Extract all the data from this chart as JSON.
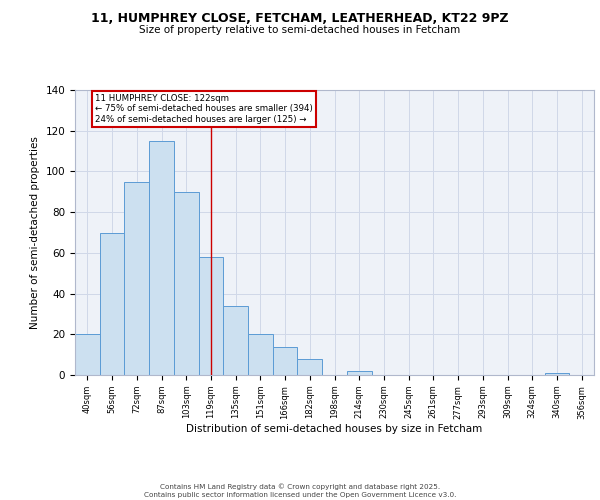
{
  "title1": "11, HUMPHREY CLOSE, FETCHAM, LEATHERHEAD, KT22 9PZ",
  "title2": "Size of property relative to semi-detached houses in Fetcham",
  "xlabel": "Distribution of semi-detached houses by size in Fetcham",
  "ylabel": "Number of semi-detached properties",
  "bar_labels": [
    "40sqm",
    "56sqm",
    "72sqm",
    "87sqm",
    "103sqm",
    "119sqm",
    "135sqm",
    "151sqm",
    "166sqm",
    "182sqm",
    "198sqm",
    "214sqm",
    "230sqm",
    "245sqm",
    "261sqm",
    "277sqm",
    "293sqm",
    "309sqm",
    "324sqm",
    "340sqm",
    "356sqm"
  ],
  "bar_heights": [
    20,
    70,
    95,
    115,
    90,
    58,
    34,
    20,
    14,
    8,
    0,
    2,
    0,
    0,
    0,
    0,
    0,
    0,
    0,
    1,
    0
  ],
  "bar_color": "#cce0f0",
  "bar_edge_color": "#5b9bd5",
  "ylim": [
    0,
    140
  ],
  "yticks": [
    0,
    20,
    40,
    60,
    80,
    100,
    120,
    140
  ],
  "property_line_x": 5.0,
  "annotation_title": "11 HUMPHREY CLOSE: 122sqm",
  "annotation_line1": "← 75% of semi-detached houses are smaller (394)",
  "annotation_line2": "24% of semi-detached houses are larger (125) →",
  "annotation_box_color": "#ffffff",
  "annotation_box_edge": "#cc0000",
  "vline_color": "#cc0000",
  "grid_color": "#d0d8e8",
  "bg_color": "#eef2f8",
  "footer1": "Contains HM Land Registry data © Crown copyright and database right 2025.",
  "footer2": "Contains public sector information licensed under the Open Government Licence v3.0."
}
